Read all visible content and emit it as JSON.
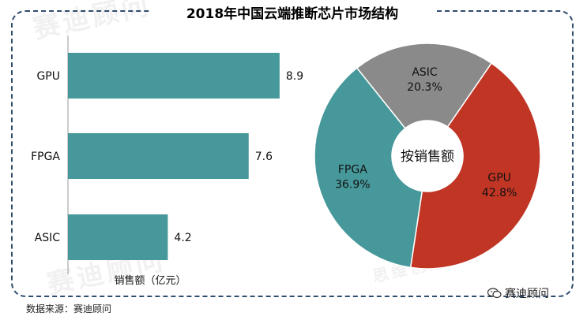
{
  "chart_data": [
    {
      "type": "bar",
      "orientation": "horizontal",
      "title": "",
      "categories": [
        "GPU",
        "FPGA",
        "ASIC"
      ],
      "values": [
        8.9,
        7.6,
        4.2
      ],
      "xlabel": "销售额（亿元）",
      "ylabel": "",
      "xlim": [
        0,
        10
      ],
      "grid": false,
      "color": "#47989a"
    },
    {
      "type": "pie",
      "style": "donut",
      "center_label": "按销售额",
      "slices": [
        {
          "label": "GPU",
          "value": 42.8,
          "value_label": "42.8%",
          "color": "#c03524"
        },
        {
          "label": "FPGA",
          "value": 36.9,
          "value_label": "36.9%",
          "color": "#47989a"
        },
        {
          "label": "ASIC",
          "value": 20.3,
          "value_label": "20.3%",
          "color": "#8a8a8a"
        }
      ]
    }
  ],
  "page": {
    "title": "2018年中国云端推断芯片市场结构",
    "source": "数据来源：赛迪顾问",
    "brand": "赛迪顾问",
    "watermark_main": "赛迪顾问",
    "watermark_sub": "思维创造世界"
  }
}
